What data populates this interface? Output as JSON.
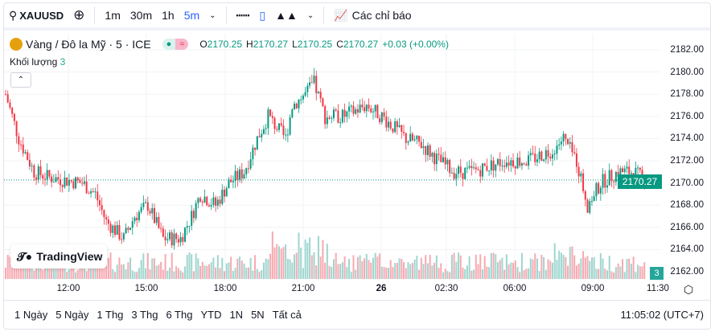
{
  "toolbar": {
    "symbol": "XAUUSD",
    "intervals": [
      "1m",
      "30m",
      "1h",
      "5m"
    ],
    "active_interval": "5m",
    "indicators_label": "Các chỉ báo"
  },
  "legend": {
    "title": "Vàng / Đô la Mỹ · 5 · ICE",
    "o_label": "O",
    "o": "2170.25",
    "h_label": "H",
    "h": "2170.27",
    "l_label": "L",
    "l": "2170.25",
    "c_label": "C",
    "c": "2170.27",
    "change": "+0.03 (+0.00%)",
    "volume_label": "Khối lượng",
    "volume_value": "3"
  },
  "price_axis": [
    "2182.00",
    "2180.00",
    "2178.00",
    "2176.00",
    "2174.00",
    "2172.00",
    "2170.00",
    "2168.00",
    "2166.00",
    "2164.00",
    "2162.00"
  ],
  "last_price": "2170.27",
  "last_volume": "3",
  "time_axis": [
    "12:00",
    "15:00",
    "18:00",
    "21:00",
    "26",
    "02:30",
    "06:00",
    "09:00",
    "11:30"
  ],
  "logo": "TradingView",
  "ranges": [
    "1 Ngày",
    "5 Ngày",
    "1 Thg",
    "3 Thg",
    "6 Thg",
    "YTD",
    "1N",
    "5N",
    "Tất cả"
  ],
  "clock": "11:05:02 (UTC+7)",
  "colors": {
    "up": "#089981",
    "down": "#f23645",
    "accent": "#2962ff"
  },
  "chart_data": {
    "type": "candlestick",
    "ylim": [
      2161.5,
      2183
    ],
    "interval": "5m",
    "anchors": [
      [
        0,
        2178
      ],
      [
        6,
        2174
      ],
      [
        13,
        2171
      ],
      [
        20,
        2170.5
      ],
      [
        35,
        2170
      ],
      [
        41,
        2169
      ],
      [
        46,
        2166.5
      ],
      [
        54,
        2165
      ],
      [
        59,
        2167
      ],
      [
        65,
        2168
      ],
      [
        72,
        2165
      ],
      [
        80,
        2165
      ],
      [
        85,
        2167
      ],
      [
        89,
        2169
      ],
      [
        96,
        2168
      ],
      [
        102,
        2170
      ],
      [
        109,
        2171
      ],
      [
        115,
        2174
      ],
      [
        120,
        2176
      ],
      [
        128,
        2174
      ],
      [
        131,
        2177
      ],
      [
        137,
        2178
      ],
      [
        141,
        2179
      ],
      [
        146,
        2176
      ],
      [
        154,
        2176
      ],
      [
        165,
        2177
      ],
      [
        172,
        2176
      ],
      [
        183,
        2174
      ],
      [
        190,
        2173.5
      ],
      [
        198,
        2172
      ],
      [
        205,
        2171
      ],
      [
        213,
        2171
      ],
      [
        228,
        2172
      ],
      [
        239,
        2172
      ],
      [
        250,
        2173
      ],
      [
        255,
        2174
      ],
      [
        261,
        2172
      ],
      [
        266,
        2168
      ],
      [
        272,
        2170
      ],
      [
        280,
        2171
      ],
      [
        287,
        2171
      ],
      [
        292,
        2170.27
      ]
    ]
  }
}
